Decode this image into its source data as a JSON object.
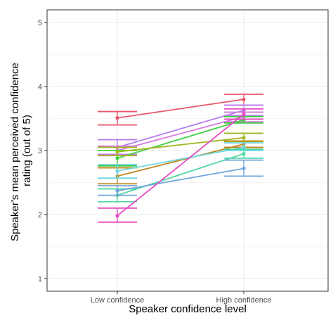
{
  "chart_data": {
    "type": "line",
    "xlabel": "Speaker confidence level",
    "ylabel": "Speaker's mean perceived confidence rating (out of 5)",
    "ylabel_lines": [
      "Speaker's mean perceived confidence",
      "rating (out of 5)"
    ],
    "categories": [
      "Low confidence",
      "High confidence"
    ],
    "ylim": [
      0.8,
      5.2
    ],
    "yticks": [
      "1",
      "2",
      "3",
      "4",
      "5"
    ],
    "grid": true,
    "legend": "none",
    "series": [
      {
        "color": "#e8566a",
        "values": [
          3.51,
          3.8
        ],
        "lower": [
          3.4,
          3.71
        ],
        "upper": [
          3.61,
          3.88
        ]
      },
      {
        "color": "#b77ef0",
        "values": [
          3.05,
          3.63
        ],
        "lower": [
          2.94,
          3.55
        ],
        "upper": [
          3.17,
          3.71
        ]
      },
      {
        "color": "#d77be0",
        "values": [
          3.0,
          3.53
        ],
        "lower": [
          2.93,
          3.45
        ],
        "upper": [
          3.07,
          3.6
        ]
      },
      {
        "color": "#3fcf43",
        "values": [
          2.88,
          3.48
        ],
        "lower": [
          2.76,
          3.43
        ],
        "upper": [
          3.0,
          3.53
        ]
      },
      {
        "color": "#a3b61f",
        "values": [
          2.98,
          3.2
        ],
        "lower": [
          2.92,
          3.14
        ],
        "upper": [
          3.05,
          3.27
        ]
      },
      {
        "color": "#c0871f",
        "values": [
          2.6,
          3.1
        ],
        "lower": [
          2.48,
          3.05
        ],
        "upper": [
          2.73,
          3.15
        ]
      },
      {
        "color": "#6bd6e0",
        "values": [
          2.68,
          3.05
        ],
        "lower": [
          2.57,
          3.0
        ],
        "upper": [
          2.78,
          3.12
        ]
      },
      {
        "color": "#4fd6a2",
        "values": [
          2.3,
          2.95
        ],
        "lower": [
          2.2,
          2.88
        ],
        "upper": [
          2.4,
          3.02
        ]
      },
      {
        "color": "#6fa6dc",
        "values": [
          2.37,
          2.72
        ],
        "lower": [
          2.3,
          2.6
        ],
        "upper": [
          2.45,
          2.85
        ]
      },
      {
        "color": "#e64bc0",
        "values": [
          1.98,
          3.57
        ],
        "lower": [
          1.88,
          3.49
        ],
        "upper": [
          2.1,
          3.65
        ]
      }
    ]
  }
}
